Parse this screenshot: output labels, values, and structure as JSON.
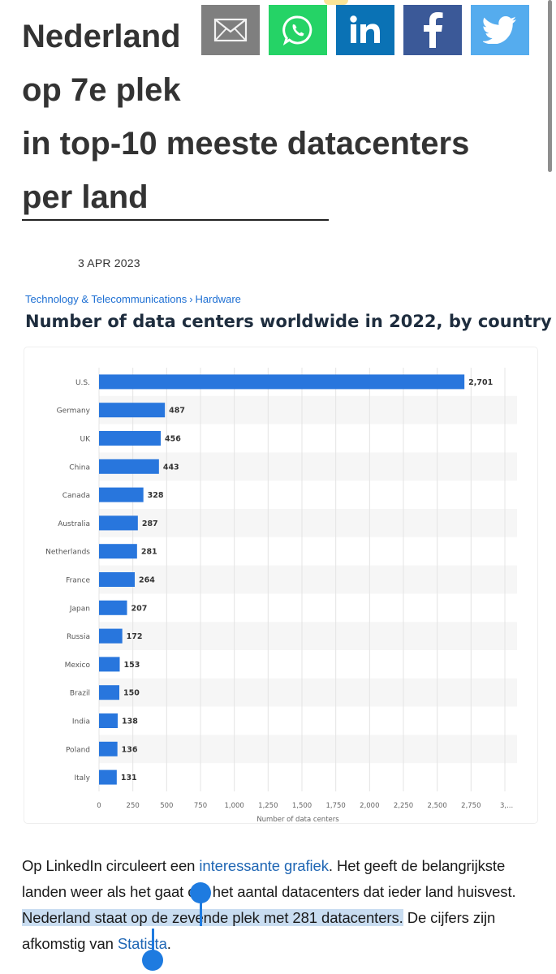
{
  "headline": {
    "line1": "Nederland",
    "line2": "op 7e plek",
    "line3": "in top-10 meeste datacenters",
    "line4": "per land"
  },
  "share_buttons": [
    {
      "name": "email",
      "icon": "envelope-icon",
      "color": "#7f7f7f"
    },
    {
      "name": "whatsapp",
      "icon": "whatsapp-icon",
      "color": "#25d366"
    },
    {
      "name": "linkedin",
      "icon": "linkedin-icon",
      "label": "in",
      "color": "#0a72b5"
    },
    {
      "name": "facebook",
      "icon": "facebook-icon",
      "label": "f",
      "color": "#3b5998"
    },
    {
      "name": "twitter",
      "icon": "twitter-bird-icon",
      "color": "#55acee"
    }
  ],
  "date": "3 APR 2023",
  "chart_embed": {
    "breadcrumb": {
      "category": "Technology & Telecommunications",
      "separator": "›",
      "subcategory": "Hardware"
    }
  },
  "chart_data": {
    "type": "bar",
    "orientation": "horizontal",
    "title": "Number of data centers worldwide in 2022, by country",
    "xlabel": "Number of data centers",
    "ylabel": "",
    "categories": [
      "U.S.",
      "Germany",
      "UK",
      "China",
      "Canada",
      "Australia",
      "Netherlands",
      "France",
      "Japan",
      "Russia",
      "Mexico",
      "Brazil",
      "India",
      "Poland",
      "Italy"
    ],
    "values": [
      2701,
      487,
      456,
      443,
      328,
      287,
      281,
      264,
      207,
      172,
      153,
      150,
      138,
      136,
      131
    ],
    "value_labels": [
      "2,701",
      "487",
      "456",
      "443",
      "328",
      "287",
      "281",
      "264",
      "207",
      "172",
      "153",
      "150",
      "138",
      "136",
      "131"
    ],
    "xlim": [
      0,
      3000
    ],
    "xticks": [
      "0",
      "250",
      "500",
      "750",
      "1,000",
      "1,250",
      "1,500",
      "1,750",
      "2,000",
      "2,250",
      "2,500",
      "2,750",
      "3,..."
    ],
    "bar_color": "#2876dd",
    "grid": true,
    "legend": "none"
  },
  "article": {
    "p1": "Op LinkedIn circuleert een ",
    "link1": "interessante grafiek",
    "p2": ". Het geeft de belangrijkste landen weer als het gaat om het aantal datacenters dat ieder land huisvest. ",
    "selected": "Nederland staat op de zevende plek met 281 datacenters.",
    "p3": " De cijfers zijn afkomstig van ",
    "link2": "Statista",
    "p4": "."
  },
  "colors": {
    "link": "#1f66b4",
    "selection": "#c9ddf1",
    "selection_handle": "#1e7be0"
  }
}
